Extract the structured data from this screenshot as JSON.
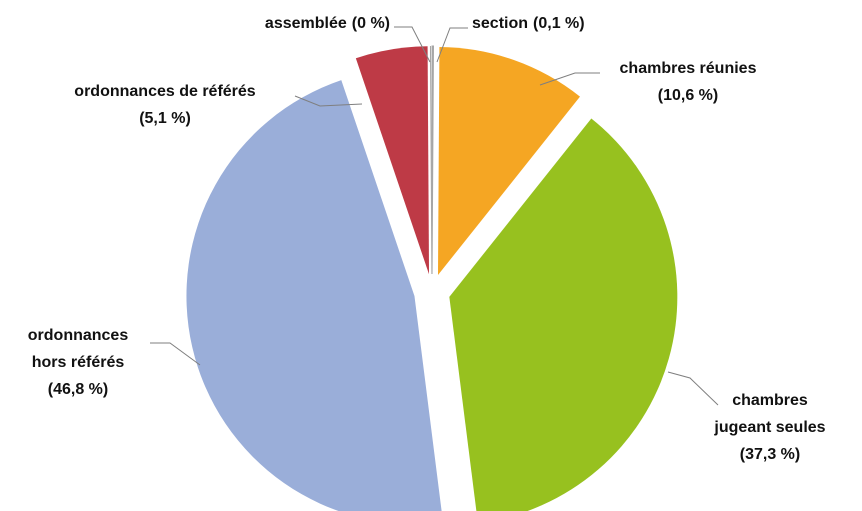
{
  "chart_data": {
    "type": "pie",
    "categories": [
      "section",
      "chambres réunies",
      "chambres jugeant seules",
      "ordonnances hors référés",
      "ordonnances de référés",
      "assemblée"
    ],
    "values": [
      0.1,
      10.6,
      37.3,
      46.8,
      5.1,
      0
    ],
    "value_labels": [
      "(0,1 %)",
      "(10,6 %)",
      "(37,3 %)",
      "(46,8 %)",
      "(5,1 %)",
      "(0 %)"
    ],
    "colors": [
      "#a6a6a6",
      "#f5a623",
      "#97c11f",
      "#9aaed9",
      "#be3a46",
      "#a6a6a6"
    ]
  }
}
